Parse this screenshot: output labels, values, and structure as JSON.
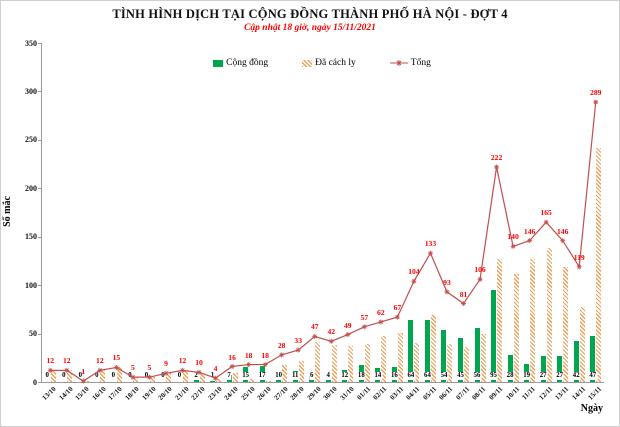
{
  "title": "TÌNH HÌNH DỊCH TẠI CỘNG ĐỒNG THÀNH PHỐ HÀ NỘI - ĐỢT 4",
  "subtitle": "Cập nhật 18 giờ, ngày 15/11/2021",
  "legend": [
    {
      "label": "Cộng đồng",
      "swatch": "green-solid-square",
      "color": "#00A550"
    },
    {
      "label": "Đã cách ly",
      "swatch": "orange-hatched-square",
      "color": "#F0A05A"
    },
    {
      "label": "Tổng",
      "swatch": "red-line-star-marker",
      "color": "#C0504D"
    }
  ],
  "chart_data": {
    "type": "bar+line",
    "title": "TÌNH HÌNH DỊCH TẠI CỘNG ĐỒNG THÀNH PHỐ HÀ NỘI - ĐỢT 4",
    "subtitle": "Cập nhật 18 giờ, ngày 15/11/2021",
    "xlabel": "Ngày",
    "ylabel": "Số mắc",
    "ylim": [
      0,
      350
    ],
    "yticks": [
      0,
      50,
      100,
      150,
      200,
      250,
      300,
      350
    ],
    "grid": false,
    "legend_position": "top",
    "categories": [
      "13/10",
      "14/10",
      "15/10",
      "16/10",
      "17/10",
      "18/10",
      "19/10",
      "20/10",
      "21/10",
      "22/10",
      "23/10",
      "24/10",
      "25/10",
      "26/10",
      "27/10",
      "28/10",
      "29/10",
      "30/10",
      "31/10",
      "01/11",
      "02/11",
      "03/11",
      "04/11",
      "05/11",
      "06/11",
      "07/11",
      "08/11",
      "09/11",
      "10/11",
      "11/11",
      "12/11",
      "13/11",
      "14/11",
      "15/11"
    ],
    "series": [
      {
        "name": "Cộng đồng",
        "type": "bar",
        "color": "#00A550",
        "hatch": false,
        "data_labels": true,
        "label_color": "#000000",
        "values": [
          0,
          0,
          0,
          0,
          0,
          0,
          0,
          0,
          0,
          2,
          1,
          7,
          15,
          17,
          10,
          11,
          6,
          4,
          12,
          18,
          14,
          16,
          64,
          64,
          54,
          45,
          56,
          95,
          28,
          19,
          27,
          27,
          42,
          47
        ]
      },
      {
        "name": "Đã cách ly",
        "type": "bar",
        "color": "#F0A05A",
        "hatch": true,
        "data_labels": false,
        "values": [
          12,
          12,
          1,
          12,
          15,
          5,
          5,
          9,
          12,
          8,
          3,
          9,
          3,
          1,
          18,
          22,
          41,
          38,
          37,
          39,
          48,
          51,
          40,
          69,
          39,
          36,
          50,
          127,
          112,
          127,
          138,
          119,
          77,
          242
        ]
      },
      {
        "name": "Tổng",
        "type": "line",
        "color": "#C0504D",
        "marker": "star",
        "data_labels": true,
        "label_color": "#FF0000",
        "values": [
          12,
          12,
          1,
          12,
          15,
          5,
          5,
          9,
          12,
          10,
          4,
          16,
          18,
          18,
          28,
          33,
          47,
          42,
          49,
          57,
          62,
          67,
          104,
          133,
          93,
          81,
          106,
          222,
          140,
          146,
          165,
          146,
          119,
          289
        ]
      }
    ]
  }
}
